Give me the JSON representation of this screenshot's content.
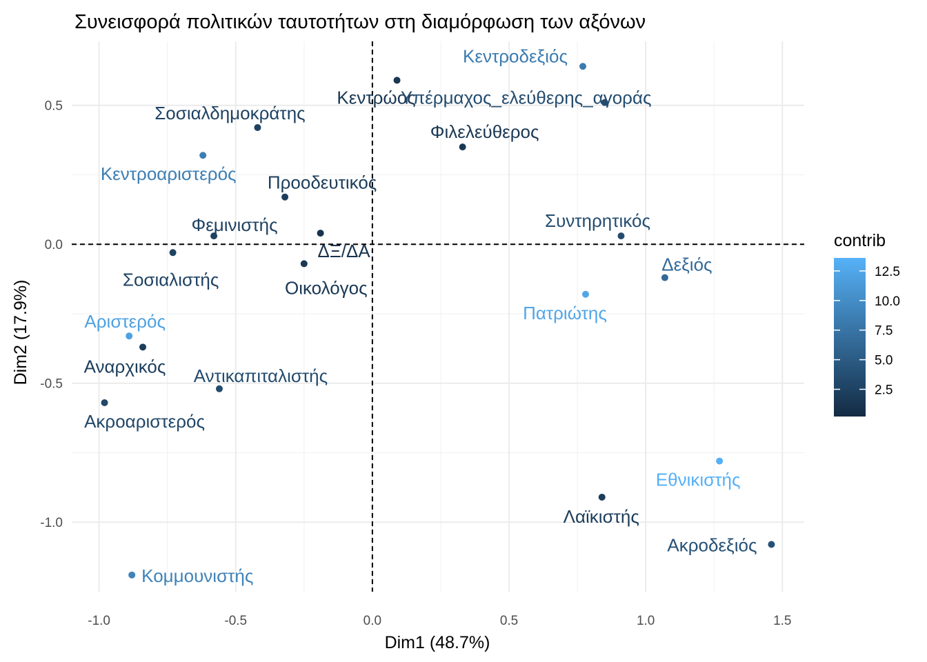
{
  "chart_data": {
    "type": "scatter",
    "title": "Συνεισφορά πολιτικών ταυτοτήτων στη διαμόρφωση των αξόνων",
    "xlabel": "Dim1 (48.7%)",
    "ylabel": "Dim2 (17.9%)",
    "xlim": [
      -1.1,
      1.58
    ],
    "ylim": [
      -1.25,
      0.73
    ],
    "xticks": [
      -1.0,
      -0.5,
      0.0,
      0.5,
      1.0,
      1.5
    ],
    "xtick_labels": [
      "-1.0",
      "-0.5",
      "0.0",
      "0.5",
      "1.0",
      "1.5"
    ],
    "yticks": [
      -1.0,
      -0.5,
      0.0,
      0.5
    ],
    "ytick_labels": [
      "-1.0",
      "-0.5",
      "0.0",
      "0.5"
    ],
    "grid": true,
    "reference_lines": {
      "x": 0,
      "y": 0,
      "style": "dashed"
    },
    "legend": {
      "title": "contrib",
      "position": "right",
      "type": "colorbar",
      "range": [
        0.2,
        13.6
      ],
      "ticks": [
        2.5,
        5.0,
        7.5,
        10.0,
        12.5
      ],
      "tick_labels": [
        "2.5",
        "5.0",
        "7.5",
        "10.0",
        "12.5"
      ],
      "low_color": "#132b43",
      "high_color": "#56b1f7"
    },
    "points": [
      {
        "label": "Κεντροδεξιός",
        "x": 0.77,
        "y": 0.64,
        "contrib": 8.2
      },
      {
        "label": "Κεντρώος",
        "x": 0.09,
        "y": 0.59,
        "contrib": 1.5
      },
      {
        "label": "Υπέρμαχος_ελεύθερης_αγοράς",
        "x": 0.85,
        "y": 0.51,
        "contrib": 3.5
      },
      {
        "label": "Σοσιαλδημοκράτης",
        "x": -0.42,
        "y": 0.42,
        "contrib": 2.5
      },
      {
        "label": "Φιλελεύθερος",
        "x": 0.33,
        "y": 0.35,
        "contrib": 1.5
      },
      {
        "label": "Κεντροαριστερός",
        "x": -0.62,
        "y": 0.32,
        "contrib": 8.5
      },
      {
        "label": "Προοδευτικός",
        "x": -0.32,
        "y": 0.17,
        "contrib": 2.0
      },
      {
        "label": "ΔΞ/ΔΑ",
        "x": -0.19,
        "y": 0.04,
        "contrib": 1.0
      },
      {
        "label": "Φεμινιστής",
        "x": -0.58,
        "y": 0.03,
        "contrib": 2.5
      },
      {
        "label": "Συντηρητικός",
        "x": 0.91,
        "y": 0.03,
        "contrib": 3.5
      },
      {
        "label": "Σοσιαλιστής",
        "x": -0.73,
        "y": -0.03,
        "contrib": 2.5
      },
      {
        "label": "Οικολόγος",
        "x": -0.25,
        "y": -0.07,
        "contrib": 1.5
      },
      {
        "label": "Δεξιός",
        "x": 1.07,
        "y": -0.12,
        "contrib": 6.5
      },
      {
        "label": "Πατριώτης",
        "x": 0.78,
        "y": -0.18,
        "contrib": 12.5
      },
      {
        "label": "Αριστερός",
        "x": -0.89,
        "y": -0.33,
        "contrib": 12.0
      },
      {
        "label": "Αναρχικός",
        "x": -0.84,
        "y": -0.37,
        "contrib": 2.0
      },
      {
        "label": "Αντικαπιταλιστής",
        "x": -0.56,
        "y": -0.52,
        "contrib": 3.5
      },
      {
        "label": "Ακροαριστερός",
        "x": -0.98,
        "y": -0.57,
        "contrib": 3.0
      },
      {
        "label": "Εθνικιστής",
        "x": 1.27,
        "y": -0.78,
        "contrib": 13.5
      },
      {
        "label": "Λαϊκιστής",
        "x": 0.84,
        "y": -0.91,
        "contrib": 2.0
      },
      {
        "label": "Ακροδεξιός",
        "x": 1.46,
        "y": -1.08,
        "contrib": 4.0
      },
      {
        "label": "Κομμουνιστής",
        "x": -0.88,
        "y": -1.19,
        "contrib": 9.0
      }
    ]
  }
}
